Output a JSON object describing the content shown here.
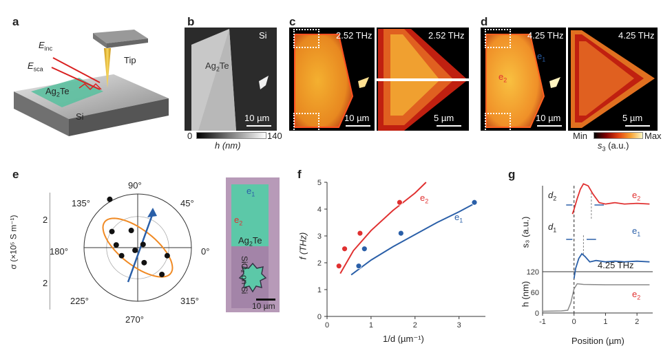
{
  "panels": {
    "a": {
      "letter": "a",
      "e_inc": "E",
      "e_inc_sub": "inc",
      "e_sca": "E",
      "e_sca_sub": "sca",
      "tip": "Tip",
      "ag2te": "Ag",
      "ag2te_sub": "2",
      "ag2te_te": "Te",
      "si": "Si"
    },
    "b": {
      "letter": "b",
      "si": "Si",
      "ag2te": "Ag",
      "ag2te_sub": "2",
      "ag2te_te": "Te",
      "scale": "10 µm",
      "cbar_min": "0",
      "cbar_max": "140",
      "cbar_label": "h (nm)"
    },
    "c": {
      "letter": "c",
      "freq_left": "2.52 THz",
      "freq_right": "2.52 THz",
      "scale_left": "10 µm",
      "scale_right": "5 µm"
    },
    "d": {
      "letter": "d",
      "freq_left": "4.25 THz",
      "freq_right": "4.25 THz",
      "scale_left": "10 µm",
      "scale_right": "5 µm",
      "e1": "e",
      "e1_sub": "1",
      "e2": "e",
      "e2_sub": "2",
      "cbar_min": "Min",
      "cbar_max": "Max",
      "cbar_label": "s",
      "cbar_label_sub": "3",
      "cbar_label_unit": " (a.u.)"
    },
    "e": {
      "letter": "e",
      "angles": [
        "90°",
        "45°",
        "0°",
        "315°",
        "270°",
        "225°",
        "180°",
        "135°"
      ],
      "ylabel": "σ (×10⁵ S m⁻¹)",
      "r_tick_top": "2",
      "r_tick_bottom": "2",
      "e1": "e",
      "e1_sub": "1",
      "e2": "e",
      "e2_sub": "2",
      "ag2te": "Ag",
      "ag2te_sub": "2",
      "ag2te_te": "Te",
      "sio2": "SiO₂ on Si",
      "scale": "10 µm"
    },
    "f": {
      "letter": "f",
      "xlabel": "1/d (µm⁻¹)",
      "ylabel": "f (THz)",
      "e1": "e",
      "e1_sub": "1",
      "e2": "e",
      "e2_sub": "2"
    },
    "g": {
      "letter": "g",
      "d1": "d",
      "d1_sub": "1",
      "d2": "d",
      "d2_sub": "2",
      "e1": "e",
      "e1_sub": "1",
      "e2": "e",
      "e2_sub": "2",
      "e2b": "e",
      "e2b_sub": "2",
      "freq": "4.25 THz",
      "ylabel_top": "s₃ (a.u.)",
      "ylabel_bottom": "h (nm)",
      "xlabel": "Position (µm)"
    }
  },
  "colors": {
    "e1": "#2a5fa8",
    "e2": "#e03030",
    "orange": "#f08a24"
  },
  "chart_data": [
    {
      "type": "scatter",
      "panel": "f",
      "xlabel": "1/d (µm⁻¹)",
      "ylabel": "f (THz)",
      "xlim": [
        0,
        3.6
      ],
      "ylim": [
        0,
        5
      ],
      "xticks": [
        0,
        1,
        2,
        3
      ],
      "yticks": [
        0,
        1,
        2,
        3,
        4,
        5
      ],
      "series": [
        {
          "name": "e₂",
          "color": "#e03030",
          "points": [
            [
              0.27,
              1.88
            ],
            [
              0.4,
              2.52
            ],
            [
              0.75,
              3.1
            ],
            [
              1.65,
              4.25
            ]
          ],
          "fit": [
            [
              0.3,
              1.6
            ],
            [
              0.6,
              2.45
            ],
            [
              1.0,
              3.2
            ],
            [
              1.5,
              3.95
            ],
            [
              2.0,
              4.6
            ],
            [
              2.25,
              5.0
            ]
          ]
        },
        {
          "name": "e₁",
          "color": "#2a5fa8",
          "points": [
            [
              0.72,
              1.88
            ],
            [
              0.85,
              2.52
            ],
            [
              1.68,
              3.1
            ],
            [
              3.35,
              4.25
            ]
          ],
          "fit": [
            [
              0.55,
              1.55
            ],
            [
              1.0,
              2.1
            ],
            [
              1.5,
              2.6
            ],
            [
              2.0,
              3.05
            ],
            [
              2.5,
              3.5
            ],
            [
              3.0,
              3.9
            ],
            [
              3.4,
              4.25
            ]
          ]
        }
      ]
    },
    {
      "type": "line",
      "panel": "g",
      "xlabel": "Position (µm)",
      "xlim": [
        -1,
        2.5
      ],
      "xticks": [
        -1,
        0,
        1,
        2
      ],
      "yticks_bottom": [
        0,
        60,
        120
      ],
      "series": [
        {
          "name": "e₂",
          "color": "#e03030",
          "x": [
            -0.05,
            0,
            0.1,
            0.2,
            0.3,
            0.45,
            0.6,
            0.8,
            1.0,
            1.3,
            1.6,
            2.0,
            2.4
          ],
          "y": [
            0.55,
            0.62,
            0.78,
            0.92,
            1.0,
            0.97,
            0.85,
            0.72,
            0.7,
            0.72,
            0.7,
            0.71,
            0.7
          ]
        },
        {
          "name": "e₁",
          "color": "#2a5fa8",
          "x": [
            0,
            0.05,
            0.15,
            0.25,
            0.35,
            0.5,
            0.7,
            1.0,
            1.3,
            1.6,
            2.0,
            2.4
          ],
          "y": [
            0.05,
            0.2,
            0.35,
            0.42,
            0.38,
            0.3,
            0.32,
            0.3,
            0.31,
            0.3,
            0.31,
            0.3
          ]
        },
        {
          "name": "h",
          "color": "#888888",
          "x": [
            -1,
            -0.4,
            -0.2,
            -0.1,
            0,
            0.1,
            0.3,
            1,
            2,
            2.4
          ],
          "y": [
            5,
            6,
            8,
            30,
            70,
            85,
            83,
            82,
            82,
            82
          ]
        }
      ]
    },
    {
      "type": "scatter",
      "panel": "e",
      "angles_deg": [
        135,
        108,
        40,
        5,
        330,
        225,
        200,
        150,
        168,
        300
      ],
      "points_xy": [
        [
          -0.52,
          0.9
        ],
        [
          -0.48,
          0.3
        ],
        [
          -0.12,
          0.32
        ],
        [
          0.1,
          0.06
        ],
        [
          0.45,
          -0.5
        ],
        [
          0.12,
          -0.28
        ],
        [
          -0.3,
          -0.15
        ],
        [
          -0.05,
          -0.05
        ],
        [
          0.55,
          -0.15
        ],
        [
          -0.4,
          0.05
        ]
      ]
    }
  ]
}
